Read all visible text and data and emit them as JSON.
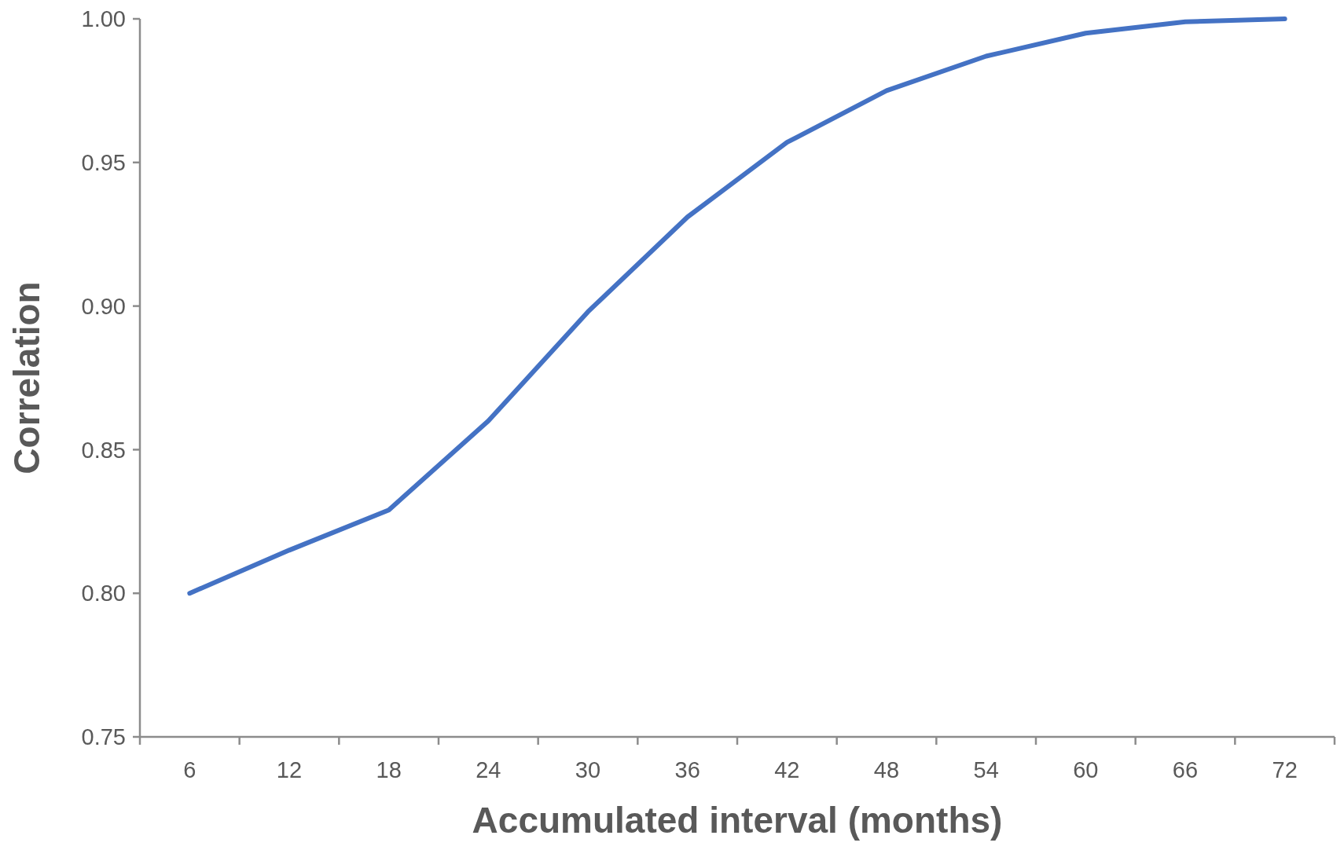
{
  "chart_data": {
    "type": "line",
    "xlabel": "Accumulated interval (months)",
    "ylabel": "Correlation",
    "categories": [
      "6",
      "12",
      "18",
      "24",
      "30",
      "36",
      "42",
      "48",
      "54",
      "60",
      "66",
      "72"
    ],
    "series": [
      {
        "color": "#4472c4",
        "values": [
          0.8,
          0.815,
          0.829,
          0.86,
          0.898,
          0.931,
          0.957,
          0.975,
          0.987,
          0.995,
          0.999,
          1.0
        ]
      }
    ],
    "ylim": [
      0.75,
      1.0
    ],
    "yticks": [
      {
        "value": 0.75,
        "label": "0.75"
      },
      {
        "value": 0.8,
        "label": "0.80"
      },
      {
        "value": 0.85,
        "label": "0.85"
      },
      {
        "value": 0.9,
        "label": "0.90"
      },
      {
        "value": 0.95,
        "label": "0.95"
      },
      {
        "value": 1.0,
        "label": "1.00"
      }
    ],
    "grid": false,
    "marker": "none",
    "line_style": "solid"
  }
}
